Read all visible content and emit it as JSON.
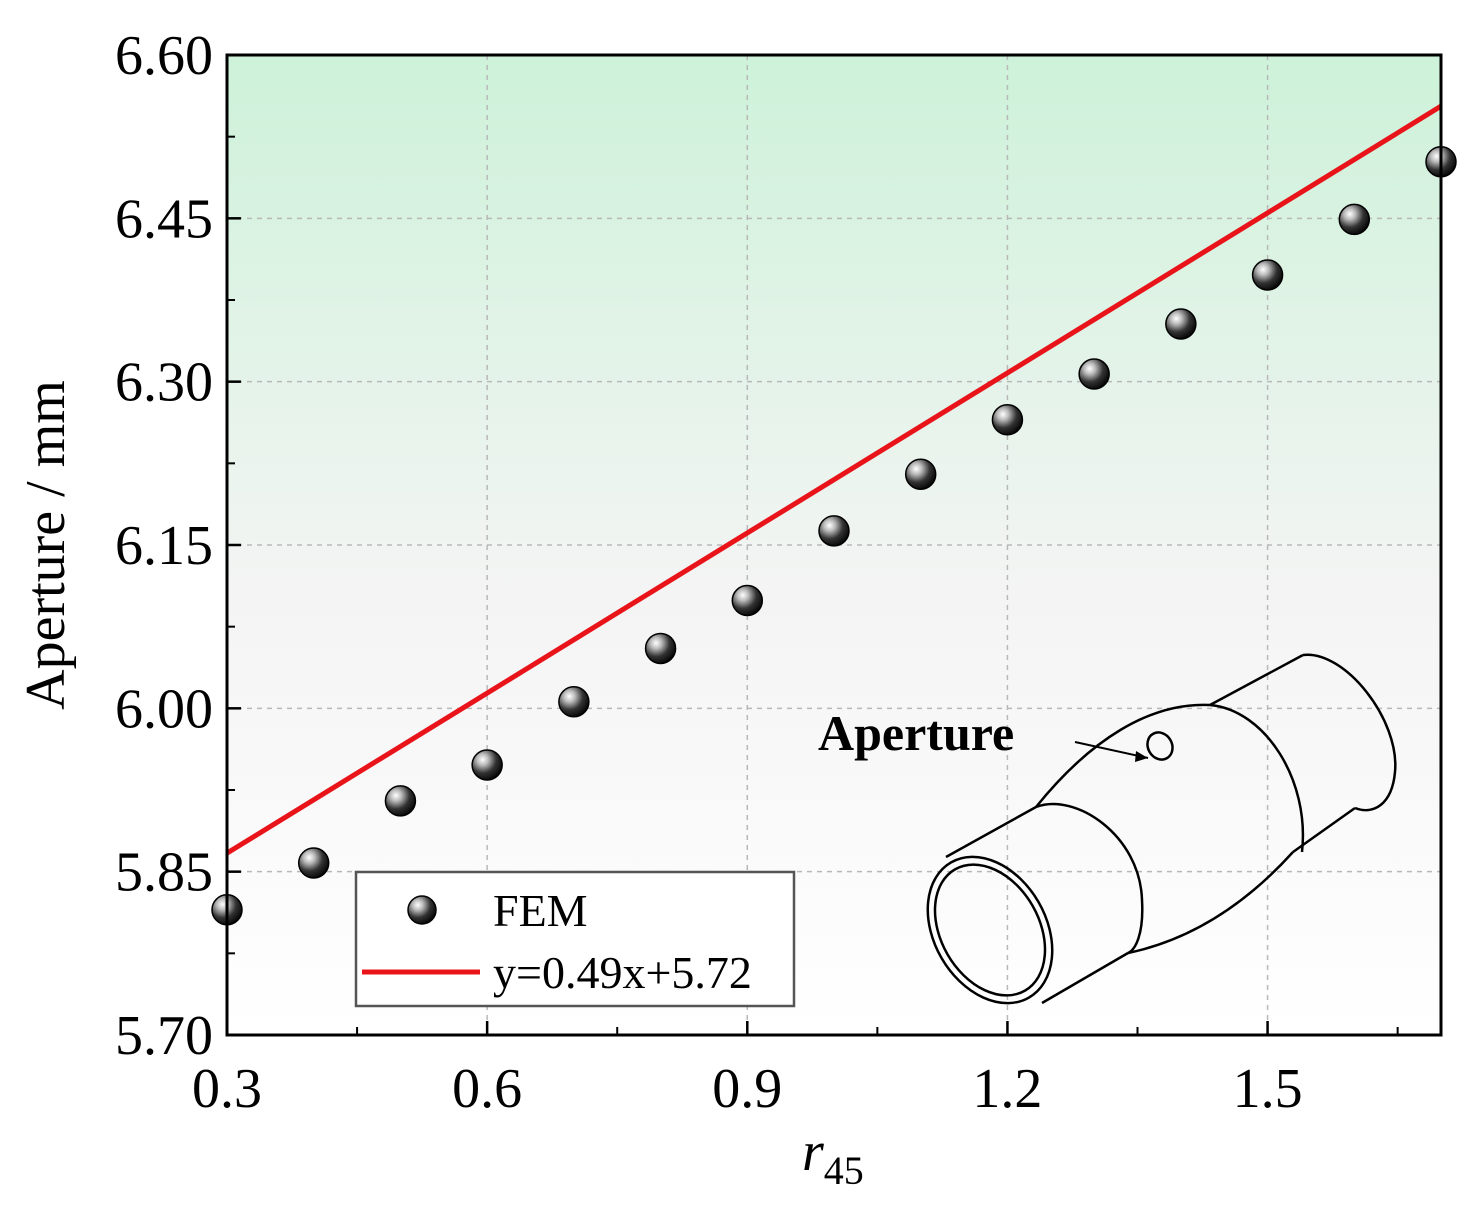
{
  "chart_data": {
    "type": "scatter",
    "xlabel": "r",
    "xlabel_sub": "45",
    "ylabel": "Aperture / mm",
    "xlim": [
      0.3,
      1.7
    ],
    "ylim": [
      5.7,
      6.6
    ],
    "xticks": [
      "0.3",
      "0.6",
      "0.9",
      "1.2",
      "1.5"
    ],
    "yticks": [
      "5.70",
      "5.85",
      "6.00",
      "6.15",
      "6.30",
      "6.45",
      "6.60"
    ],
    "grid": true,
    "legend_position": "bottom-left",
    "series": [
      {
        "name": "FEM",
        "kind": "points",
        "x": [
          0.3,
          0.4,
          0.5,
          0.6,
          0.7,
          0.8,
          0.9,
          1.0,
          1.1,
          1.2,
          1.3,
          1.4,
          1.5,
          1.6,
          1.7
        ],
        "y": [
          5.815,
          5.858,
          5.915,
          5.948,
          6.006,
          6.055,
          6.099,
          6.163,
          6.215,
          6.265,
          6.307,
          6.353,
          6.398,
          6.449,
          6.502
        ]
      },
      {
        "name": "y=0.49x+5.72",
        "kind": "line",
        "slope": 0.49,
        "intercept": 5.72,
        "color": "#e8141a"
      }
    ],
    "background_gradient": {
      "top": "#cdf2d9",
      "middle": "#f4f4f4",
      "bottom": "#ffffff"
    },
    "inset": {
      "label": "Aperture",
      "symbol": "D"
    }
  }
}
